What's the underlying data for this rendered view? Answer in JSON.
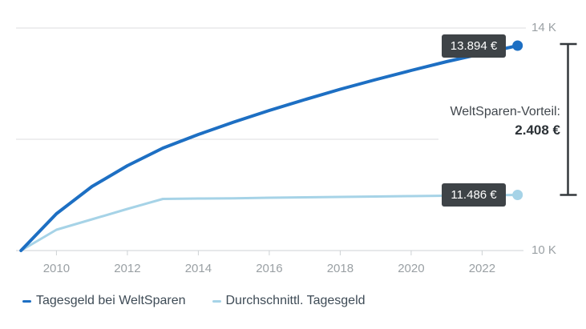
{
  "chart_data": {
    "type": "line",
    "title": "",
    "xlabel": "",
    "ylabel": "",
    "x": [
      2009,
      2010,
      2011,
      2012,
      2013,
      2014,
      2015,
      2016,
      2017,
      2018,
      2019,
      2020,
      2021,
      2022,
      2023
    ],
    "x_ticks": [
      2010,
      2012,
      2014,
      2016,
      2018,
      2020,
      2022
    ],
    "x_tick_labels": [
      "2010",
      "2012",
      "2014",
      "2016",
      "2018",
      "2020",
      "2022"
    ],
    "ylim": [
      10000,
      14000
    ],
    "y_ticks": [
      {
        "value": 10000,
        "label": "10 K"
      },
      {
        "value": 14000,
        "label": "14 K"
      }
    ],
    "grid": "horizontal",
    "legend_position": "bottom-left",
    "series": [
      {
        "name": "Tagesgeld bei WeltSparen",
        "color": "#1d6fc3",
        "end_label": "13.894 €",
        "end_value": 13894,
        "values": [
          10000,
          10700,
          11217,
          11612,
          11947,
          12205,
          12441,
          12662,
          12867,
          13065,
          13247,
          13422,
          13590,
          13742,
          13894
        ]
      },
      {
        "name": "Durchschnittl. Tagesgeld",
        "color": "#a6d3e7",
        "end_label": "11.486 €",
        "end_value": 11486,
        "values": [
          10000,
          10556,
          10834,
          11112,
          11379,
          11390,
          11396,
          11411,
          11422,
          11432,
          11443,
          11454,
          11464,
          11475,
          11486
        ]
      }
    ],
    "annotation": {
      "label": "WeltSparen-Vorteil:",
      "value": "2.408 €"
    }
  },
  "colors": {
    "badge_bg": "#3e4347",
    "badge_text": "#ffffff",
    "bracket": "#33383c",
    "grid": "#dcdddf",
    "axis": "#cdd1d4",
    "axis_label": "#9aa0a4",
    "legend_text": "#3e4b56",
    "annotation_label": "#41474d",
    "annotation_value": "#2b3136"
  }
}
